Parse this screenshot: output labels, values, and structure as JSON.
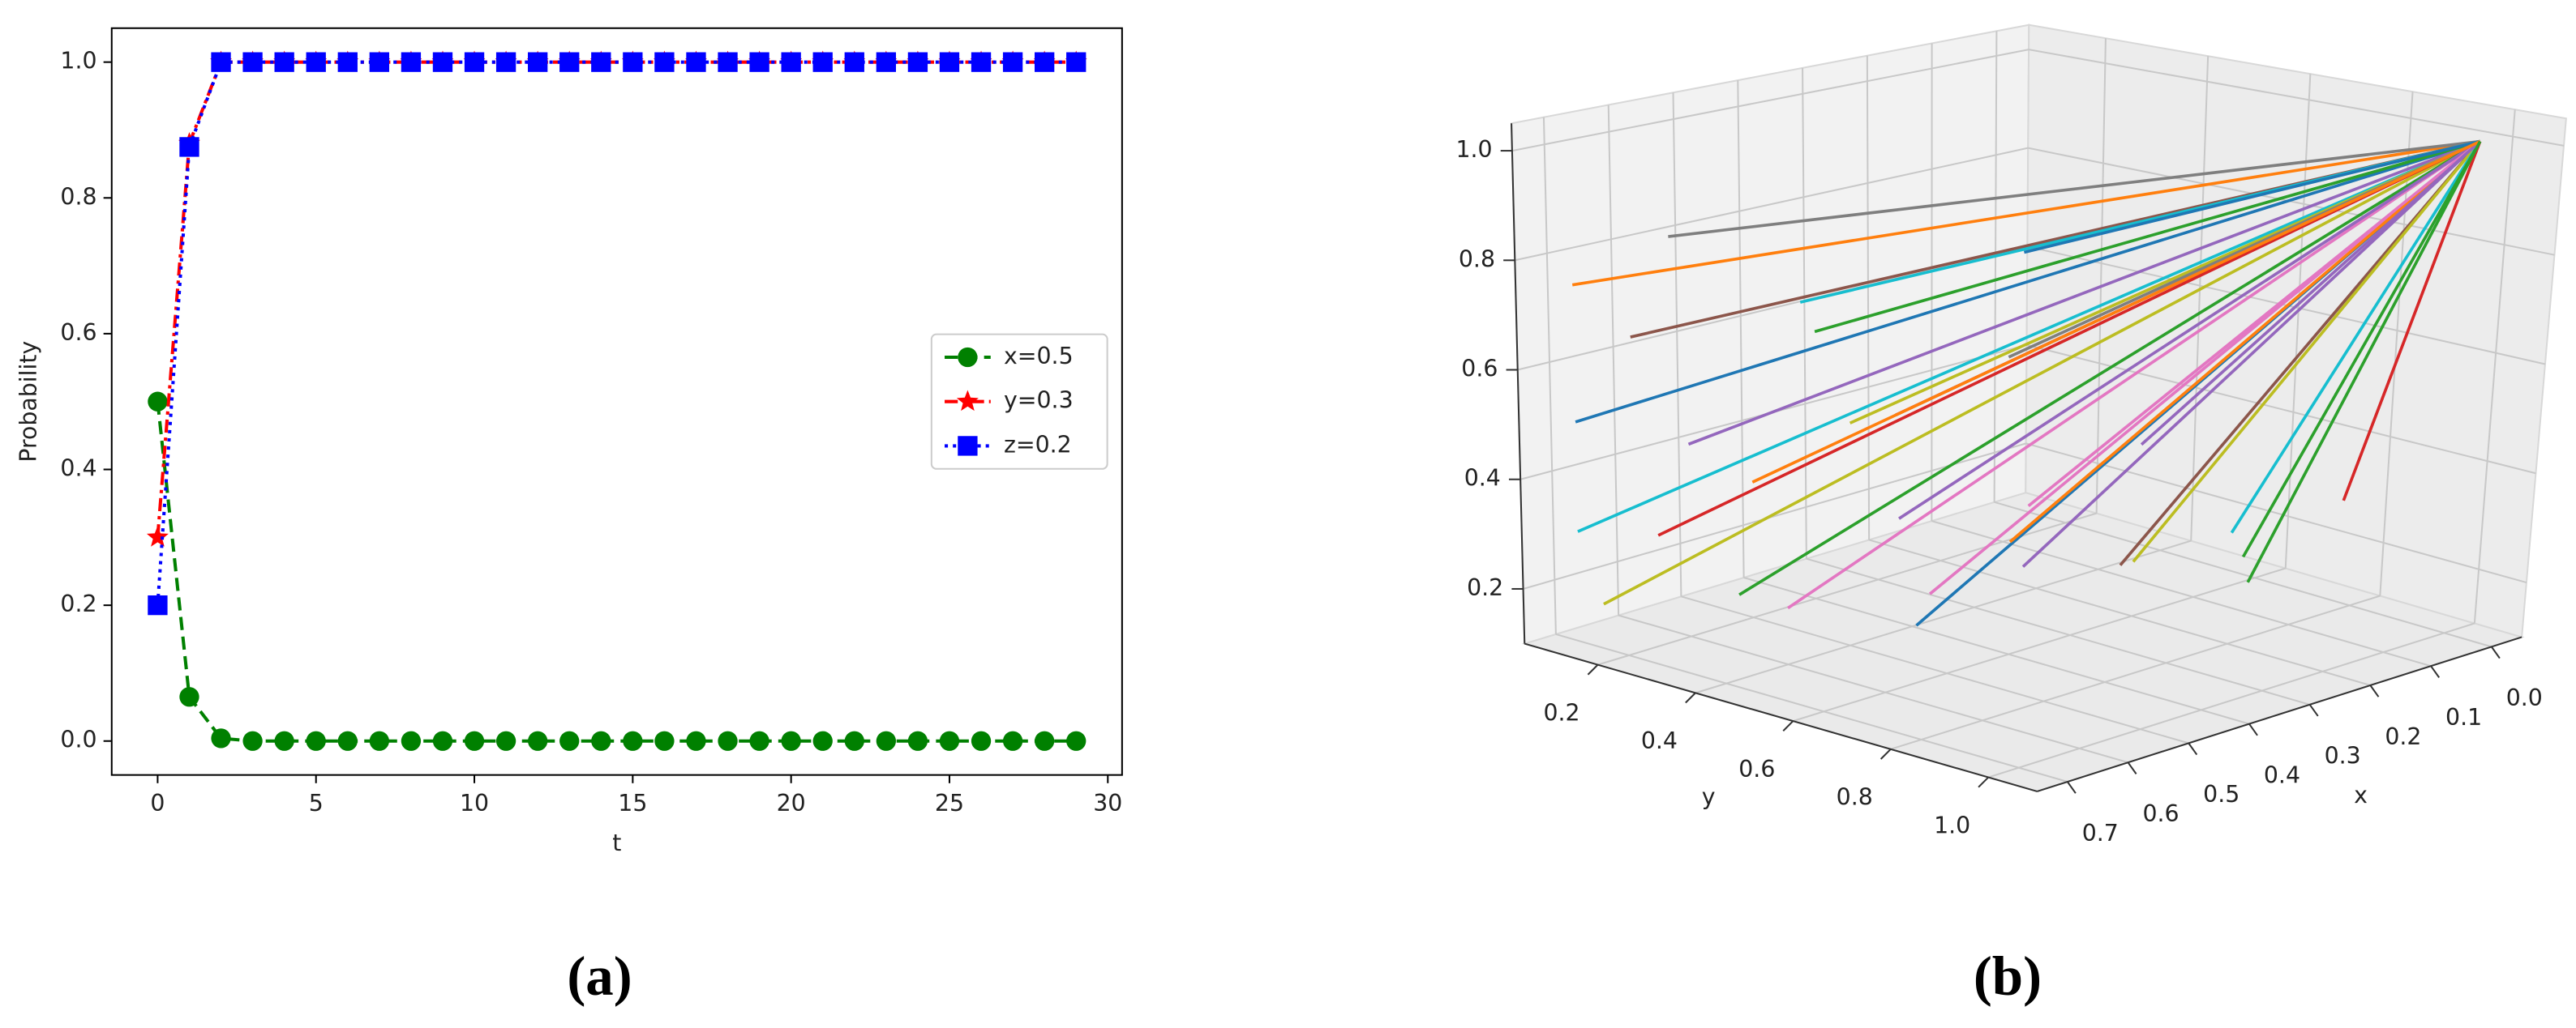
{
  "chart_data": [
    {
      "type": "line",
      "label": "(a)",
      "xlabel": "t",
      "ylabel": "Probability",
      "x": [
        0,
        1,
        2,
        3,
        4,
        5,
        6,
        7,
        8,
        9,
        10,
        11,
        12,
        13,
        14,
        15,
        16,
        17,
        18,
        19,
        20,
        21,
        22,
        23,
        24,
        25,
        26,
        27,
        28,
        29
      ],
      "xlim": [
        -1.45,
        30.45
      ],
      "xticks": [
        0,
        5,
        10,
        15,
        20,
        25,
        30
      ],
      "ylim": [
        -0.05,
        1.05
      ],
      "yticks": [
        {
          "value": 0,
          "label": "0.0"
        },
        0.2,
        0.4,
        0.6,
        0.8,
        {
          "value": 1,
          "label": "1.0"
        }
      ],
      "legend": "center right",
      "series": [
        {
          "name": "x=0.5",
          "color": "#008000",
          "linestyle": "dashed",
          "marker": "circle",
          "values": [
            0.5,
            0.065,
            0.004,
            0,
            0,
            0,
            0,
            0,
            0,
            0,
            0,
            0,
            0,
            0,
            0,
            0,
            0,
            0,
            0,
            0,
            0,
            0,
            0,
            0,
            0,
            0,
            0,
            0,
            0,
            0
          ]
        },
        {
          "name": "y=0.3",
          "color": "#ff0000",
          "linestyle": "dashdot",
          "marker": "star",
          "values": [
            0.3,
            0.88,
            1,
            1,
            1,
            1,
            1,
            1,
            1,
            1,
            1,
            1,
            1,
            1,
            1,
            1,
            1,
            1,
            1,
            1,
            1,
            1,
            1,
            1,
            1,
            1,
            1,
            1,
            1,
            1
          ]
        },
        {
          "name": "z=0.2",
          "color": "#0000ff",
          "linestyle": "dotted",
          "marker": "square",
          "values": [
            0.2,
            0.875,
            1,
            1,
            1,
            1,
            1,
            1,
            1,
            1,
            1,
            1,
            1,
            1,
            1,
            1,
            1,
            1,
            1,
            1,
            1,
            1,
            1,
            1,
            1,
            1,
            1,
            1,
            1,
            1
          ]
        }
      ]
    },
    {
      "type": "line3d",
      "label": "(b)",
      "xlabel": "x",
      "ylabel": "y",
      "xlim": [
        -0.05,
        0.75
      ],
      "ylim": [
        0.05,
        1.1
      ],
      "zlim": [
        0.1,
        1.05
      ],
      "xticks": [
        {
          "value": 0,
          "label": "0.0"
        },
        0.1,
        0.2,
        0.3,
        0.4,
        0.5,
        0.6,
        0.7
      ],
      "yticks": [
        0.2,
        0.4,
        0.6,
        0.8,
        {
          "value": 1,
          "label": "1.0"
        }
      ],
      "zticks": [
        0.2,
        0.4,
        0.6,
        0.8,
        {
          "value": 1,
          "label": "1.0"
        }
      ],
      "grid": true,
      "series": [
        {
          "color": "#ff7f0e",
          "x": [
            0.7,
            0
          ],
          "y": [
            0.1,
            1
          ],
          "z": [
            0.75,
            1
          ]
        },
        {
          "color": "#1f77b4",
          "x": [
            0.7,
            0
          ],
          "y": [
            0.1,
            1
          ],
          "z": [
            0.5,
            1
          ]
        },
        {
          "color": "#17becf",
          "x": [
            0.7,
            0
          ],
          "y": [
            0.1,
            1
          ],
          "z": [
            0.3,
            1
          ]
        },
        {
          "color": "#bcbd22",
          "x": [
            0.7,
            0
          ],
          "y": [
            0.15,
            1
          ],
          "z": [
            0.18,
            1
          ]
        },
        {
          "color": "#8c564b",
          "x": [
            0.65,
            0
          ],
          "y": [
            0.15,
            1
          ],
          "z": [
            0.65,
            1
          ]
        },
        {
          "color": "#9467bd",
          "x": [
            0.6,
            0
          ],
          "y": [
            0.2,
            1
          ],
          "z": [
            0.45,
            1
          ]
        },
        {
          "color": "#d62728",
          "x": [
            0.65,
            0
          ],
          "y": [
            0.2,
            1
          ],
          "z": [
            0.3,
            1
          ]
        },
        {
          "color": "#7f7f7f",
          "x": [
            0.55,
            0
          ],
          "y": [
            0.1,
            1
          ],
          "z": [
            0.8,
            1
          ]
        },
        {
          "color": "#17becf",
          "x": [
            0.5,
            0
          ],
          "y": [
            0.3,
            1
          ],
          "z": [
            0.7,
            1
          ]
        },
        {
          "color": "#2ca02c",
          "x": [
            0.6,
            0
          ],
          "y": [
            0.3,
            1
          ],
          "z": [
            0.2,
            1
          ]
        },
        {
          "color": "#bcbd22",
          "x": [
            0.5,
            0
          ],
          "y": [
            0.4,
            1
          ],
          "z": [
            0.5,
            1
          ]
        },
        {
          "color": "#e377c2",
          "x": [
            0.6,
            0
          ],
          "y": [
            0.4,
            1
          ],
          "z": [
            0.2,
            1
          ]
        },
        {
          "color": "#9467bd",
          "x": [
            0.5,
            0
          ],
          "y": [
            0.5,
            1
          ],
          "z": [
            0.35,
            1
          ]
        },
        {
          "color": "#1f77b4",
          "x": [
            0.55,
            0
          ],
          "y": [
            0.6,
            1
          ],
          "z": [
            0.2,
            1
          ]
        },
        {
          "color": "#2ca02c",
          "x": [
            0.4,
            0
          ],
          "y": [
            0.2,
            1
          ],
          "z": [
            0.6,
            1
          ]
        },
        {
          "color": "#e377c2",
          "x": [
            0.45,
            0
          ],
          "y": [
            0.5,
            1
          ],
          "z": [
            0.2,
            1
          ]
        },
        {
          "color": "#ff7f0e",
          "x": [
            0.4,
            0
          ],
          "y": [
            0.6,
            1
          ],
          "z": [
            0.3,
            1
          ]
        },
        {
          "color": "#d62728",
          "x": [
            0.35,
            0
          ],
          "y": [
            0.3,
            1
          ],
          "z": [
            0.45,
            1
          ]
        },
        {
          "color": "#9467bd",
          "x": [
            0.3,
            0
          ],
          "y": [
            0.5,
            1
          ],
          "z": [
            0.2,
            1
          ]
        },
        {
          "color": "#8c564b",
          "x": [
            0.3,
            0
          ],
          "y": [
            0.7,
            1
          ],
          "z": [
            0.25,
            1
          ]
        },
        {
          "color": "#7f7f7f",
          "x": [
            0.25,
            0
          ],
          "y": [
            0.4,
            1
          ],
          "z": [
            0.55,
            1
          ]
        },
        {
          "color": "#bcbd22",
          "x": [
            0.2,
            0
          ],
          "y": [
            0.6,
            1
          ],
          "z": [
            0.2,
            1
          ]
        },
        {
          "color": "#17becf",
          "x": [
            0.2,
            0
          ],
          "y": [
            0.8,
            1
          ],
          "z": [
            0.3,
            1
          ]
        },
        {
          "color": "#1f77b4",
          "x": [
            0.15,
            0
          ],
          "y": [
            0.3,
            1
          ],
          "z": [
            0.7,
            1
          ]
        },
        {
          "color": "#2ca02c",
          "x": [
            0.1,
            0
          ],
          "y": [
            0.7,
            1
          ],
          "z": [
            0.2,
            1
          ]
        },
        {
          "color": "#d62728",
          "x": [
            0.1,
            0
          ],
          "y": [
            0.9,
            1
          ],
          "z": [
            0.35,
            1
          ]
        },
        {
          "color": "#e377c2",
          "x": [
            0.45,
            0
          ],
          "y": [
            0.7,
            1
          ],
          "z": [
            0.4,
            1
          ]
        },
        {
          "color": "#9467bd",
          "x": [
            0.35,
            0
          ],
          "y": [
            0.8,
            1
          ],
          "z": [
            0.5,
            1
          ]
        },
        {
          "color": "#ff7f0e",
          "x": [
            0.5,
            0
          ],
          "y": [
            0.2,
            1
          ],
          "z": [
            0.35,
            1
          ]
        },
        {
          "color": "#2ca02c",
          "x": [
            0.25,
            0
          ],
          "y": [
            0.9,
            1
          ],
          "z": [
            0.25,
            1
          ]
        }
      ]
    }
  ]
}
